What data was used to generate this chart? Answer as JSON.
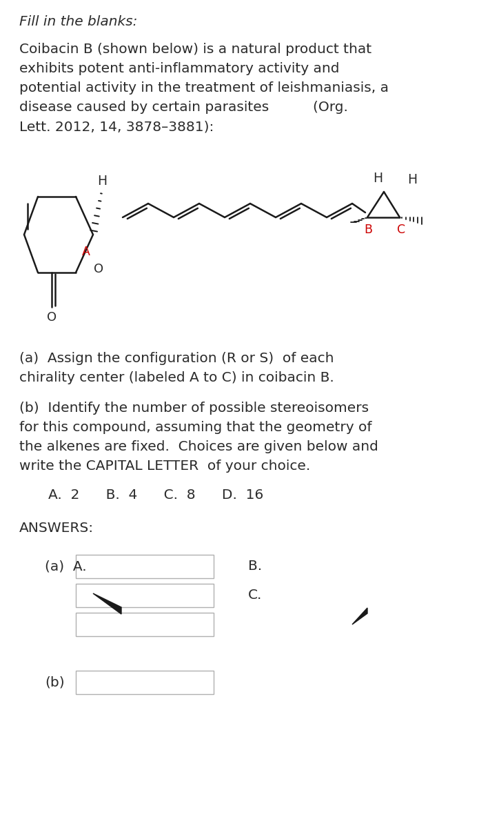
{
  "bg_color": "#ffffff",
  "title_italic": "Fill in the blanks:",
  "para1_line1": "Coibacin B (shown below) is a natural product that",
  "para1_line2": "exhibits potent anti-inflammatory activity and",
  "para1_line3": "potential activity in the treatment of leishmaniasis, a",
  "para1_line4": "disease caused by certain parasites          (Org.",
  "para1_line5": "Lett. 2012, 14, 3878–3881):",
  "question_a_line1": "(a)  Assign the configuration (R or S)  of each",
  "question_a_line2": "chirality center (labeled A to C) in coibacin B.",
  "question_b_line1": "(b)  Identify the number of possible stereoisomers",
  "question_b_line2": "for this compound, assuming that the geometry of",
  "question_b_line3": "the alkenes are fixed.  Choices are given below and",
  "question_b_line4": "write the CAPITAL LETTER  of your choice.",
  "choices_line": "A.  2      B.  4      C.  8      D.  16",
  "answers_label": "ANSWERS:",
  "answer_a_label": "(a)  A.",
  "answer_b_label": "B.",
  "answer_c_label": "C.",
  "answer_b_part_label": "(b)",
  "text_color": "#2b2b2b",
  "red_color": "#cc0000",
  "box_edge_color": "#b0b0b0",
  "font_size_main": 14.5,
  "font_size_title": 14.5
}
